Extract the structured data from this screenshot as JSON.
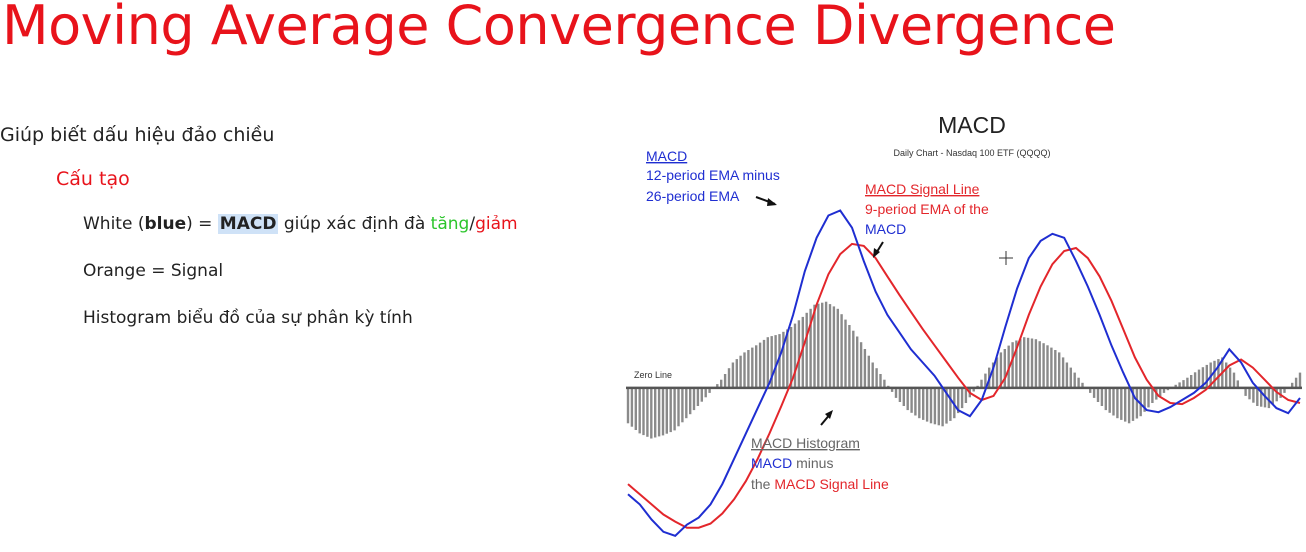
{
  "slide": {
    "title": "Moving Average Convergence Divergence",
    "bullet1": "Giúp biết dấu hiệu đảo chiều",
    "bullet2": "Cấu tạo",
    "bullet3": {
      "pre": "White (",
      "blue_word": "blue",
      "mid": ") = ",
      "macd": "MACD",
      "post": " giúp xác định đà ",
      "up": "tăng",
      "slash": "/",
      "down": "giảm"
    },
    "bullet4": "Orange = Signal",
    "bullet5": "Histogram biểu đồ của sự phân kỳ tính"
  },
  "colors": {
    "title_red": "#e8131b",
    "macd_blue": "#1f2ed1",
    "signal_red": "#e3262b",
    "histogram_gray": "#8a8a8a",
    "tang_green": "#2cc52c"
  },
  "chart_data": {
    "type": "line",
    "title": "MACD",
    "subtitle": "Daily Chart - Nasdaq 100 ETF (QQQQ)",
    "annotations": {
      "macd_name": "MACD",
      "macd_desc1": "12-period EMA minus",
      "macd_desc2": "26-period EMA",
      "signal_name": "MACD Signal Line",
      "signal_desc1": "9-period EMA of the",
      "signal_desc2": "MACD",
      "zero_line": "Zero Line",
      "hist_name": "MACD Histogram",
      "hist_desc1_a": "MACD",
      "hist_desc1_b": " minus",
      "hist_desc2_a": "the ",
      "hist_desc2_b": "MACD Signal Line"
    },
    "ylim": [
      -1.6,
      2.1
    ],
    "series": [
      {
        "name": "MACD",
        "values": [
          -1.05,
          -1.15,
          -1.3,
          -1.42,
          -1.46,
          -1.35,
          -1.28,
          -1.15,
          -0.95,
          -0.7,
          -0.45,
          -0.2,
          0.05,
          0.35,
          0.72,
          1.15,
          1.48,
          1.7,
          1.75,
          1.58,
          1.25,
          0.95,
          0.72,
          0.55,
          0.38,
          0.25,
          0.12,
          -0.05,
          -0.22,
          -0.28,
          -0.12,
          0.2,
          0.6,
          0.98,
          1.28,
          1.45,
          1.52,
          1.48,
          1.25,
          1.0,
          0.72,
          0.42,
          0.15,
          -0.1,
          -0.22,
          -0.24,
          -0.19,
          -0.12,
          -0.05,
          0.05,
          0.2,
          0.38,
          0.25,
          0.05,
          -0.08,
          -0.2,
          -0.25,
          -0.1
        ]
      },
      {
        "name": "MACD Signal Line",
        "values": [
          -0.95,
          -1.05,
          -1.15,
          -1.25,
          -1.32,
          -1.38,
          -1.38,
          -1.34,
          -1.24,
          -1.1,
          -0.92,
          -0.7,
          -0.45,
          -0.18,
          0.1,
          0.45,
          0.82,
          1.12,
          1.32,
          1.42,
          1.4,
          1.28,
          1.1,
          0.92,
          0.75,
          0.58,
          0.42,
          0.26,
          0.1,
          -0.05,
          -0.12,
          -0.08,
          0.1,
          0.4,
          0.72,
          1.0,
          1.22,
          1.35,
          1.38,
          1.28,
          1.1,
          0.86,
          0.58,
          0.3,
          0.08,
          -0.08,
          -0.15,
          -0.16,
          -0.1,
          -0.02,
          0.1,
          0.22,
          0.28,
          0.2,
          0.08,
          -0.04,
          -0.12,
          -0.15
        ]
      },
      {
        "name": "MACD Histogram",
        "values": [
          -0.35,
          -0.45,
          -0.5,
          -0.47,
          -0.42,
          -0.3,
          -0.18,
          -0.05,
          0.08,
          0.25,
          0.35,
          0.42,
          0.5,
          0.53,
          0.6,
          0.7,
          0.82,
          0.85,
          0.78,
          0.62,
          0.45,
          0.25,
          0.08,
          -0.1,
          -0.22,
          -0.3,
          -0.35,
          -0.38,
          -0.3,
          -0.15,
          0.02,
          0.2,
          0.35,
          0.45,
          0.5,
          0.48,
          0.42,
          0.35,
          0.2,
          0.05,
          -0.1,
          -0.22,
          -0.3,
          -0.35,
          -0.28,
          -0.15,
          -0.05,
          0.03,
          0.1,
          0.18,
          0.25,
          0.3,
          0.15,
          -0.08,
          -0.18,
          -0.2,
          -0.1,
          0.05
        ]
      }
    ]
  }
}
